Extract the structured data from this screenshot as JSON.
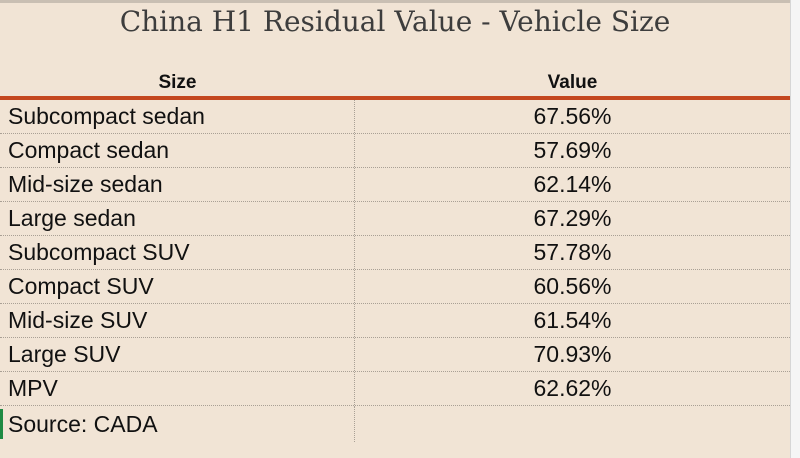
{
  "title": "China H1 Residual Value - Vehicle Size",
  "columns": {
    "size": "Size",
    "value": "Value"
  },
  "rows": [
    {
      "size": "Subcompact sedan",
      "value": "67.56%"
    },
    {
      "size": "Compact sedan",
      "value": "57.69%"
    },
    {
      "size": "Mid-size sedan",
      "value": "62.14%"
    },
    {
      "size": "Large sedan",
      "value": "67.29%"
    },
    {
      "size": "Subcompact SUV",
      "value": "57.78%"
    },
    {
      "size": "Compact SUV",
      "value": "60.56%"
    },
    {
      "size": "Mid-size SUV",
      "value": "61.54%"
    },
    {
      "size": "Large SUV",
      "value": "70.93%"
    },
    {
      "size": "MPV",
      "value": "62.62%"
    }
  ],
  "source": "Source: CADA",
  "colors": {
    "background": "#f1e4d5",
    "header_rule": "#c4471f",
    "selection_marker": "#1e8a43"
  }
}
